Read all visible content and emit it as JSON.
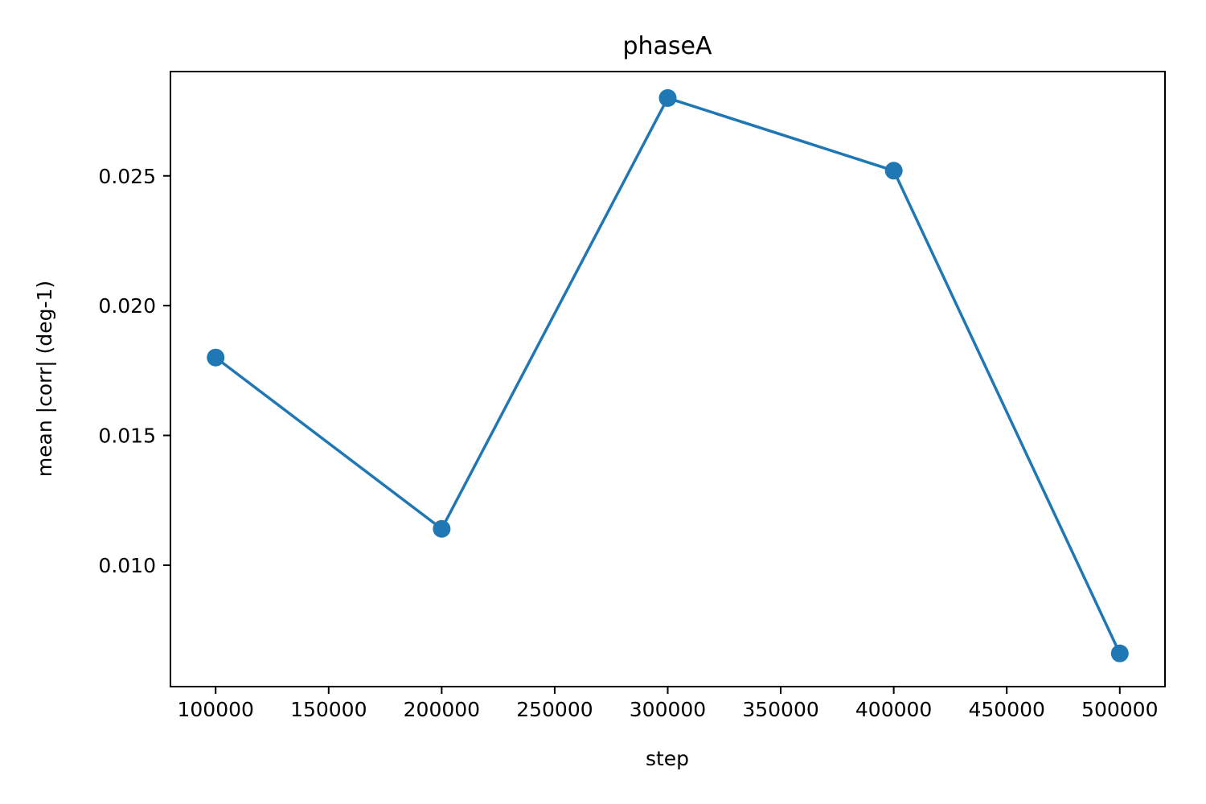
{
  "chart_data": {
    "type": "line",
    "title": "phaseA",
    "xlabel": "step",
    "ylabel": "mean |corr| (deg-1)",
    "x": [
      100000,
      200000,
      300000,
      400000,
      500000
    ],
    "series": [
      {
        "values": [
          0.018,
          0.0114,
          0.028,
          0.0252,
          0.0066
        ],
        "color": "#1f77b4",
        "marker": "circle"
      }
    ],
    "xlim": [
      80000,
      520000
    ],
    "ylim": [
      0.00532,
      0.02902
    ],
    "xticks": [
      100000,
      150000,
      200000,
      250000,
      300000,
      350000,
      400000,
      450000,
      500000
    ],
    "xtick_labels": [
      "100000",
      "150000",
      "200000",
      "250000",
      "300000",
      "350000",
      "400000",
      "450000",
      "500000"
    ],
    "yticks": [
      0.01,
      0.015,
      0.02,
      0.025
    ],
    "ytick_labels": [
      "0.010",
      "0.015",
      "0.020",
      "0.025"
    ],
    "grid": false,
    "legend": "none"
  }
}
